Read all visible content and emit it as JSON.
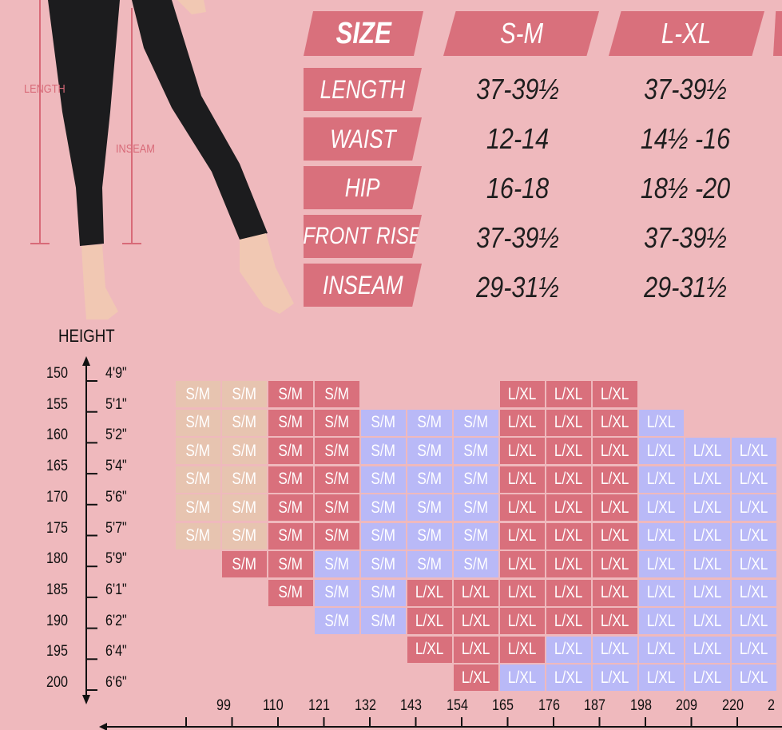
{
  "figure": {
    "length_label": "LENGTH",
    "inseam_label": "INSEAM"
  },
  "size_table": {
    "header": "SIZE",
    "columns": [
      "S-M",
      "L-XL"
    ],
    "rows": [
      {
        "label": "LENGTH",
        "values": [
          "37-39½",
          "37-39½"
        ]
      },
      {
        "label": "WAIST",
        "values": [
          "12-14",
          "14½ -16"
        ]
      },
      {
        "label": "HIP",
        "values": [
          "16-18",
          "18½ -20"
        ]
      },
      {
        "label": "FRONT RISE",
        "values": [
          "37-39½",
          "37-39½"
        ]
      },
      {
        "label": "INSEAM",
        "values": [
          "29-31½",
          "29-31½"
        ]
      }
    ]
  },
  "chart": {
    "height_title": "HEIGHT",
    "heights": [
      {
        "cm": "150",
        "ft": "4'9\""
      },
      {
        "cm": "155",
        "ft": "5'1\""
      },
      {
        "cm": "160",
        "ft": "5'2\""
      },
      {
        "cm": "165",
        "ft": "5'4\""
      },
      {
        "cm": "170",
        "ft": "5'6\""
      },
      {
        "cm": "175",
        "ft": "5'7\""
      },
      {
        "cm": "180",
        "ft": "5'9\""
      },
      {
        "cm": "185",
        "ft": "6'1\""
      },
      {
        "cm": "190",
        "ft": "6'2\""
      },
      {
        "cm": "195",
        "ft": "6'4\""
      },
      {
        "cm": "200",
        "ft": "6'6\""
      }
    ],
    "weights": [
      "99",
      "110",
      "121",
      "132",
      "143",
      "154",
      "165",
      "176",
      "187",
      "198",
      "209",
      "220",
      "2"
    ],
    "color_key": {
      "b": "#e7c4b0",
      "r": "#d9707c",
      "u": "#b9b9f7"
    },
    "size_labels": {
      "s": "S/M",
      "l": "L/XL"
    },
    "grid": [
      "bs bs rs rs .. .. .. rl rl rl .. .. ..",
      "bs bs rs rs us us us rl rl rl ul .. ..",
      "bs bs rs rs us us us rl rl rl ul ul ul",
      "bs bs rs rs us us us rl rl rl ul ul ul",
      "bs bs rs rs us us us rl rl rl ul ul ul",
      "bs bs rs rs us us us rl rl rl ul ul ul",
      ".. rs rs us us us us rl rl rl ul ul ul",
      ".. .. rs us us rl rl rl rl rl ul ul ul",
      ".. .. .. us us rl rl rl rl rl ul ul ul",
      ".. .. .. .. .. rl rl rl ul ul ul ul ul",
      ".. .. .. .. .. .. rl ul ul ul ul ul ul"
    ]
  }
}
